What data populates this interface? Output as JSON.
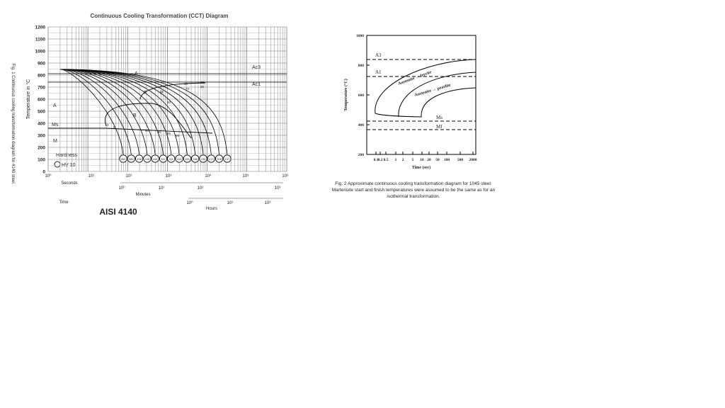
{
  "side_caption": "Fig. 1 Continuous cooling transformation diagram for 4140 steel.",
  "figure1": {
    "title": "Continuous Cooling Transformation (CCT) Diagram",
    "y_label": "Temperature in °C",
    "y_ticks": [
      "1200",
      "1100",
      "1000",
      "900",
      "800",
      "700",
      "600",
      "500",
      "400",
      "300",
      "200",
      "100",
      "0"
    ],
    "seconds_ticks": [
      "10⁰",
      "10¹",
      "10²",
      "10³",
      "10⁴",
      "10⁵",
      "10⁶"
    ],
    "seconds_label": "Seconds",
    "minutes_ticks": [
      "10⁰",
      "10¹",
      "10²",
      "10³"
    ],
    "minutes_label": "Minutes",
    "hours_ticks": [
      "10⁰",
      "10¹",
      "10²"
    ],
    "hours_label": "Hours",
    "time_label": "Time",
    "steel": "AISI 4140",
    "legend_title": "Hardness",
    "legend_item": "HV 10",
    "phases": [
      "A",
      "F",
      "P",
      "B",
      "M",
      "A"
    ],
    "ms": "Ms",
    "ac3": "Ac3",
    "ac1": "Ac1",
    "hardness": [
      "660",
      "588",
      "498",
      "448",
      "448",
      "342",
      "311",
      "314",
      "285",
      "266",
      "235",
      "213",
      "208",
      "197"
    ],
    "rate_labels": [
      "2",
      "5",
      "30",
      "35",
      "50",
      "55",
      "70",
      "80",
      "90",
      "95",
      "99"
    ]
  },
  "figure2": {
    "y_label": "Temperature (°C)",
    "y_ticks": [
      "1000",
      "800",
      "600",
      "400",
      "200"
    ],
    "x_ticks": [
      "0.1",
      "0.2",
      "0.5",
      "1",
      "2",
      "5",
      "10",
      "20",
      "50",
      "100",
      "500",
      "2000"
    ],
    "x_label": "Time (sec)",
    "a3": "A3",
    "a1": "A1",
    "ms": "Ms",
    "mf": "Mf",
    "ferrite": "Austenite → ferrite",
    "pearlite": "Austenite → pearlite",
    "caption": [
      "Fig. 2 Approximate continuous cooling transformation diagram for 1045 steel.",
      "Martensite start and finish temperatures were assumed to be the same as for an",
      "isothermal transformation."
    ]
  }
}
